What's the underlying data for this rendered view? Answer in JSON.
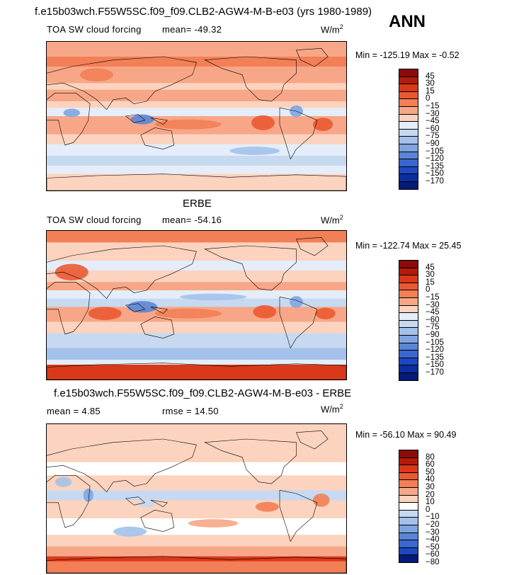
{
  "header": {
    "title": "f.e15b03wch.F55W5SC.f09_f09.CLB2-AGW4-M-B-e03 (yrs 1980-1989)",
    "season": "ANN"
  },
  "palettes": {
    "model": [
      "#8c0a0a",
      "#b31b0c",
      "#d9391a",
      "#ea5a32",
      "#f27f55",
      "#f7a787",
      "#fbd3bf",
      "#e4edf9",
      "#c6d9f1",
      "#a3c1ea",
      "#7fa5e0",
      "#5b86d6",
      "#3a67cf",
      "#1e48c0",
      "#0b2ea1",
      "#061b78"
    ],
    "diff": [
      "#8c0a0a",
      "#b31b0c",
      "#d9391a",
      "#ea5a32",
      "#f27f55",
      "#f7a787",
      "#fbd3bf",
      "#ffffff",
      "#c6d9f1",
      "#a3c1ea",
      "#7fa5e0",
      "#5b86d6",
      "#3a67cf",
      "#1e48c0",
      "#061b78"
    ]
  },
  "chart_data": [
    {
      "type": "heatmap",
      "name": "model",
      "title": "TOA SW cloud forcing",
      "mean_text": "mean= -49.32",
      "units_text": "W/m2",
      "min_max_text": "Min = -125.19 Max = -0.52",
      "min": -125.19,
      "max": -0.52,
      "mean": -49.32,
      "levels": [
        "45",
        "30",
        "15",
        "0",
        "−15",
        "−30",
        "−45",
        "−60",
        "−75",
        "−90",
        "−105",
        "−120",
        "−135",
        "−150",
        "−170"
      ]
    },
    {
      "type": "heatmap",
      "name": "obs",
      "title": "ERBE",
      "panel_label": "TOA SW cloud forcing",
      "mean_text": "mean= -54.16",
      "units_text": "W/m2",
      "min_max_text": "Min = -122.74 Max = 25.45",
      "min": -122.74,
      "max": 25.45,
      "mean": -54.16,
      "levels": [
        "45",
        "30",
        "15",
        "0",
        "−15",
        "−30",
        "−45",
        "−60",
        "−75",
        "−90",
        "−105",
        "−120",
        "−135",
        "−150",
        "−170"
      ]
    },
    {
      "type": "heatmap",
      "name": "difference",
      "title": "f.e15b03wch.F55W5SC.f09_f09.CLB2-AGW4-M-B-e03 - ERBE",
      "mean_text": "mean = 4.85",
      "rmse_text": "rmse = 14.50",
      "units_text": "W/m2",
      "min_max_text": "Min = -56.10 Max = 90.49",
      "min": -56.1,
      "max": 90.49,
      "mean": 4.85,
      "rmse": 14.5,
      "levels": [
        "80",
        "60",
        "50",
        "40",
        "30",
        "20",
        "10",
        "0",
        "−10",
        "−20",
        "−30",
        "−40",
        "−50",
        "−60",
        "−80"
      ]
    }
  ]
}
